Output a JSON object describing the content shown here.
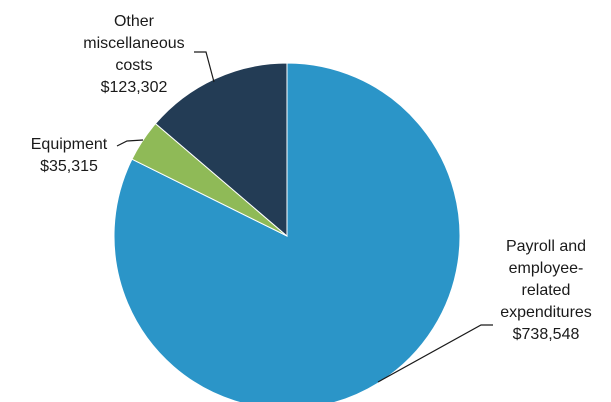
{
  "chart_data": {
    "type": "pie",
    "slices": [
      {
        "label_lines": [
          "Payroll and",
          "employee-",
          "related",
          "expenditures"
        ],
        "value_text": "$738,548",
        "value": 738548,
        "color": "#2b95c8"
      },
      {
        "label_lines": [
          "Equipment"
        ],
        "value_text": "$35,315",
        "value": 35315,
        "color": "#8fba57"
      },
      {
        "label_lines": [
          "Other",
          "miscellaneous",
          "costs"
        ],
        "value_text": "$123,302",
        "value": 123302,
        "color": "#233c55"
      }
    ],
    "start_angle": "12 o'clock",
    "direction": "clockwise",
    "legend": "none (direct labels with leader lines)"
  }
}
